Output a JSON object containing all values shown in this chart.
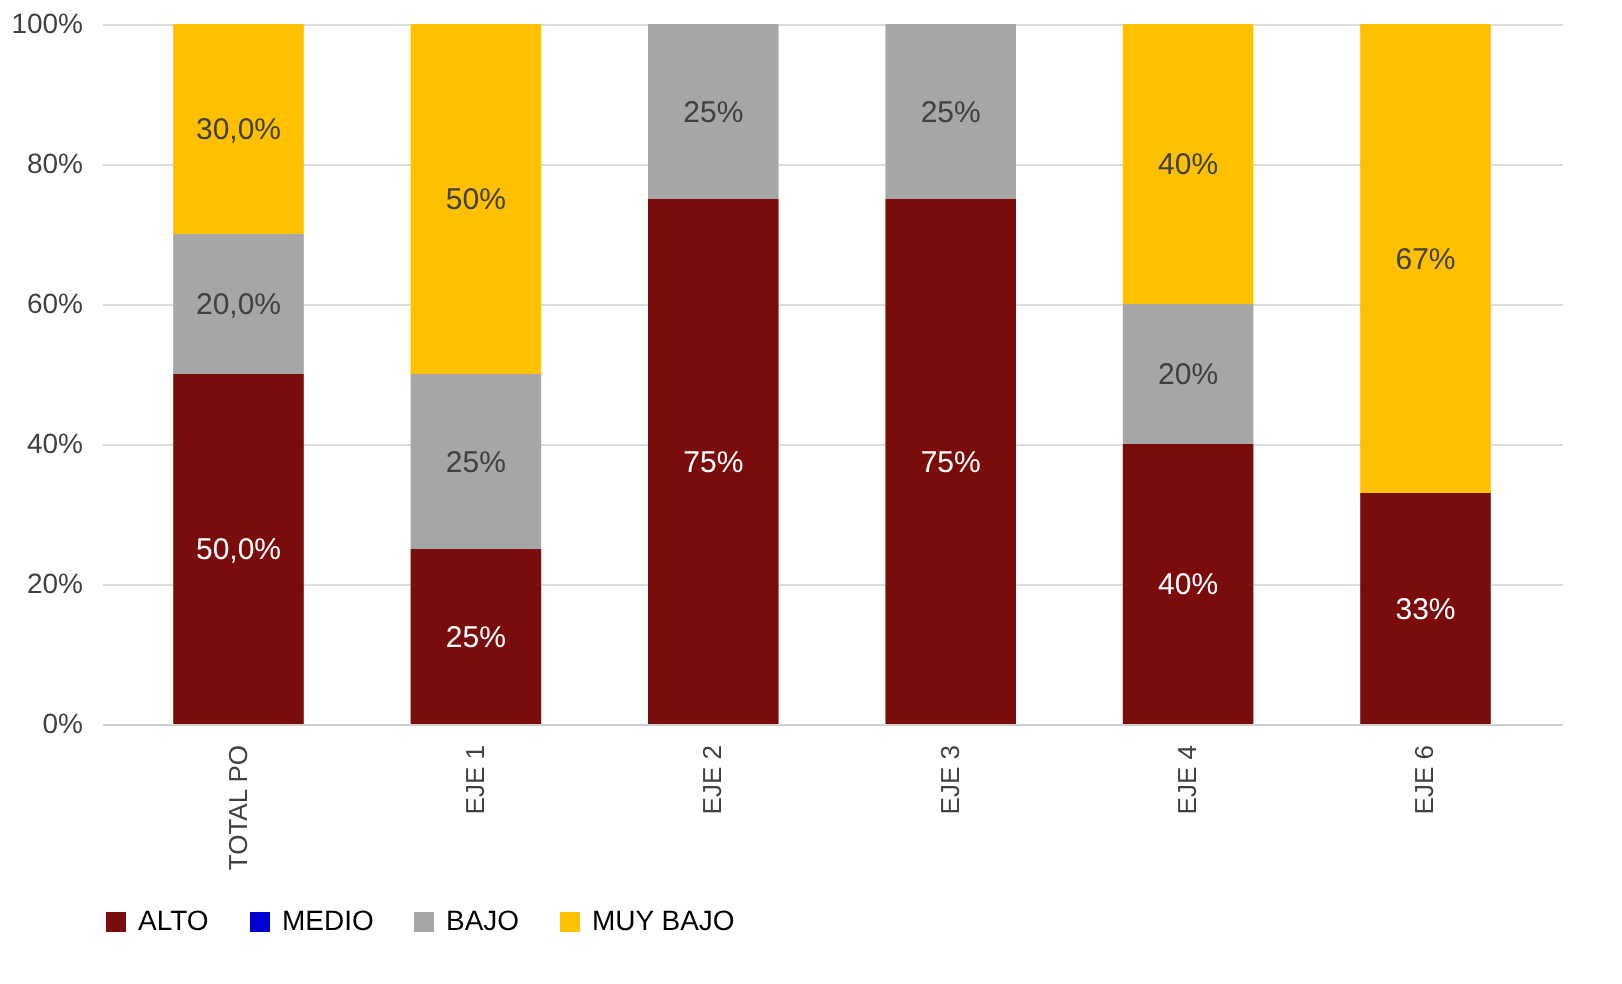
{
  "chart_data": {
    "type": "bar",
    "stacked": true,
    "categories": [
      "TOTAL PO",
      "EJE 1",
      "EJE 2",
      "EJE 3",
      "EJE 4",
      "EJE 6"
    ],
    "series": [
      {
        "name": "ALTO",
        "color": "#7b0c0c",
        "values": [
          50,
          25,
          75,
          75,
          40,
          33
        ],
        "value_labels": [
          "50,0%",
          "25%",
          "75%",
          "75%",
          "40%",
          "33%"
        ]
      },
      {
        "name": "MEDIO",
        "color": "#0000d0",
        "values": [
          0,
          0,
          0,
          0,
          0,
          0
        ],
        "value_labels": [
          null,
          null,
          null,
          null,
          null,
          null
        ]
      },
      {
        "name": "BAJO",
        "color": "#a6a6a6",
        "values": [
          20,
          25,
          25,
          25,
          20,
          0
        ],
        "value_labels": [
          "20,0%",
          "25%",
          "25%",
          "25%",
          "20%",
          null
        ]
      },
      {
        "name": "MUY BAJO",
        "color": "#ffc000",
        "values": [
          30,
          50,
          0,
          0,
          40,
          67
        ],
        "value_labels": [
          "30,0%",
          "50%",
          null,
          null,
          "40%",
          "67%"
        ]
      }
    ],
    "ylim": [
      0,
      100
    ],
    "yticks": [
      {
        "value": 0,
        "label": "0%"
      },
      {
        "value": 20,
        "label": "20%"
      },
      {
        "value": 40,
        "label": "40%"
      },
      {
        "value": 60,
        "label": "60%"
      },
      {
        "value": 80,
        "label": "80%"
      },
      {
        "value": 100,
        "label": "100%"
      }
    ],
    "grid": "y",
    "legend": "bottom"
  }
}
